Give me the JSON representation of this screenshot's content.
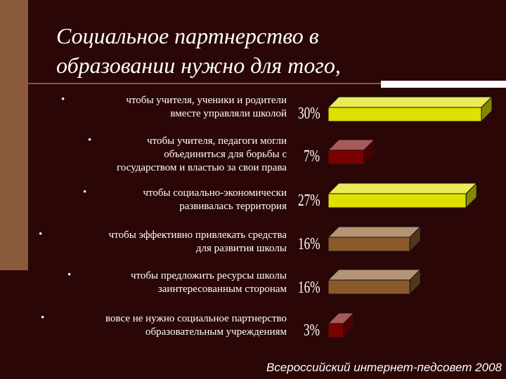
{
  "title_line1": "Социальное партнерство в",
  "title_line2": "образовании нужно для того,",
  "footer": "Всероссийский интернет-педсовет 2008",
  "bullet_char": "•",
  "colors": {
    "background": "#2a0606",
    "yellow": "#e0e000",
    "darkred": "#7a0000",
    "brown": "#8b5a2b"
  },
  "chart_data": {
    "type": "bar",
    "orientation": "horizontal",
    "categories": [
      [
        "чтобы учителя, ученики и родители",
        "вместе управляли школой"
      ],
      [
        "чтобы учителя, педагоги могли",
        "объединиться для борьбы с",
        "государством и властью за свои права"
      ],
      [
        "чтобы социально-экономически",
        "развивалась территория"
      ],
      [
        "чтобы эффективно привлекать средства",
        "для развития школы"
      ],
      [
        "чтобы предложить ресурсы школы",
        "заинтересованным сторонам"
      ],
      [
        "вовсе не нужно социальное партнерство",
        "образовательным учреждениям"
      ]
    ],
    "values": [
      30,
      7,
      27,
      16,
      16,
      3
    ],
    "labels": [
      "30%",
      "7%",
      "27%",
      "16%",
      "16%",
      "3%"
    ],
    "bar_colors": [
      "#e0e000",
      "#7a0000",
      "#e0e000",
      "#8b5a2b",
      "#8b5a2b",
      "#7a0000"
    ]
  }
}
